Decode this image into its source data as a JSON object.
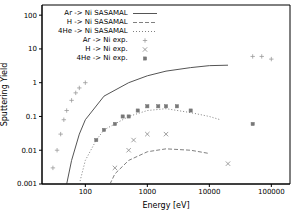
{
  "chart_data": {
    "type": "line",
    "xlabel": "Energy [eV]",
    "ylabel": "Sputtering Yield",
    "log": true,
    "grid": false,
    "legend": "upper left",
    "xlim": [
      20,
      200000
    ],
    "xticks": [
      100,
      1000,
      10000,
      100000
    ],
    "ylim": [
      0.001,
      200
    ],
    "yticks": [
      0.001,
      0.01,
      0.1,
      1,
      10,
      100
    ],
    "series": [
      {
        "name": "Ar -> Ni SASAMAL",
        "type": "line",
        "color": "#555555",
        "line_style": "solid",
        "x": [
          50,
          60,
          80,
          100,
          200,
          500,
          1000,
          2000,
          5000,
          10000,
          20000
        ],
        "values": [
          0.001,
          0.005,
          0.03,
          0.08,
          0.4,
          1,
          1.6,
          2.2,
          2.8,
          3.2,
          3.3
        ]
      },
      {
        "name": "H -> Ni SASAMAL",
        "type": "line",
        "color": "#808080",
        "line_style": "dashed",
        "x": [
          250,
          300,
          500,
          1000,
          2000,
          5000,
          10000
        ],
        "values": [
          0.001,
          0.002,
          0.005,
          0.009,
          0.011,
          0.01,
          0.008
        ]
      },
      {
        "name": "4He -> Ni SASAMAL",
        "type": "line",
        "color": "#808080",
        "line_style": "dotted",
        "x": [
          80,
          100,
          150,
          200,
          500,
          1000,
          2000,
          5000,
          10000,
          15000
        ],
        "values": [
          0.001,
          0.005,
          0.02,
          0.04,
          0.1,
          0.15,
          0.17,
          0.13,
          0.1,
          0.08
        ]
      },
      {
        "name": "Ar -> Ni exp.",
        "type": "scatter",
        "color": "#999999",
        "marker": "plus",
        "x": [
          30,
          35,
          40,
          45,
          50,
          60,
          70,
          80,
          100,
          50000,
          70000,
          100000
        ],
        "values": [
          0.003,
          0.01,
          0.03,
          0.08,
          0.15,
          0.3,
          0.5,
          0.7,
          1,
          6,
          6,
          5
        ]
      },
      {
        "name": "H -> Ni exp.",
        "type": "scatter",
        "color": "#888888",
        "marker": "x",
        "x": [
          300,
          500,
          600,
          1000,
          2000,
          20000
        ],
        "values": [
          0.003,
          0.01,
          0.02,
          0.03,
          0.03,
          0.004
        ]
      },
      {
        "name": "4He -> Ni exp.",
        "type": "scatter",
        "color": "#777777",
        "marker": "square",
        "x": [
          150,
          200,
          300,
          400,
          500,
          700,
          1000,
          1500,
          2000,
          3000,
          5000,
          50000
        ],
        "values": [
          0.02,
          0.04,
          0.06,
          0.1,
          0.1,
          0.15,
          0.2,
          0.2,
          0.2,
          0.2,
          0.15,
          0.06
        ]
      }
    ]
  }
}
